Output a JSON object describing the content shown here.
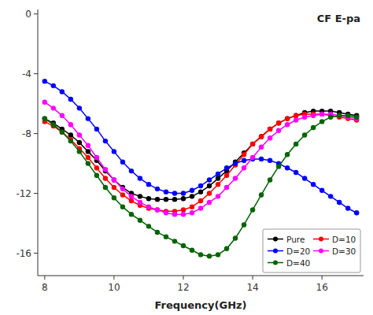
{
  "chart_data": {
    "type": "line",
    "title": "CF E-pa",
    "xlabel": "Frequency(GHz)",
    "x": [
      8.0,
      8.25,
      8.5,
      8.75,
      9.0,
      9.25,
      9.5,
      9.75,
      10.0,
      10.25,
      10.5,
      10.75,
      11.0,
      11.25,
      11.5,
      11.75,
      12.0,
      12.25,
      12.5,
      12.75,
      13.0,
      13.25,
      13.5,
      13.75,
      14.0,
      14.25,
      14.5,
      14.75,
      15.0,
      15.25,
      15.5,
      15.75,
      16.0,
      16.25,
      16.5,
      16.75,
      17.0
    ],
    "series": [
      {
        "name": "Pure",
        "color": "#000000",
        "values": [
          -7.0,
          -7.3,
          -7.7,
          -8.1,
          -8.6,
          -9.2,
          -9.8,
          -10.5,
          -11.1,
          -11.6,
          -12.0,
          -12.2,
          -12.35,
          -12.4,
          -12.4,
          -12.4,
          -12.35,
          -12.2,
          -11.9,
          -11.5,
          -11.0,
          -10.5,
          -9.9,
          -9.3,
          -8.7,
          -8.2,
          -7.7,
          -7.3,
          -7.0,
          -6.8,
          -6.6,
          -6.5,
          -6.5,
          -6.5,
          -6.6,
          -6.7,
          -6.8
        ]
      },
      {
        "name": "D=10",
        "color": "#ff0000",
        "values": [
          -7.2,
          -7.5,
          -7.9,
          -8.4,
          -9.0,
          -9.6,
          -10.3,
          -11.0,
          -11.6,
          -12.1,
          -12.5,
          -12.8,
          -13.0,
          -13.1,
          -13.2,
          -13.2,
          -13.1,
          -12.9,
          -12.5,
          -12.0,
          -11.4,
          -10.8,
          -10.1,
          -9.4,
          -8.7,
          -8.2,
          -7.7,
          -7.3,
          -7.0,
          -6.8,
          -6.7,
          -6.7,
          -6.7,
          -6.8,
          -6.9,
          -7.0,
          -7.1
        ]
      },
      {
        "name": "D=20",
        "color": "#0000ff",
        "values": [
          -4.5,
          -4.8,
          -5.2,
          -5.7,
          -6.3,
          -7.0,
          -7.7,
          -8.5,
          -9.2,
          -9.9,
          -10.5,
          -11.0,
          -11.4,
          -11.7,
          -11.9,
          -12.0,
          -12.0,
          -11.8,
          -11.5,
          -11.1,
          -10.7,
          -10.3,
          -10.0,
          -9.8,
          -9.7,
          -9.7,
          -9.8,
          -10.0,
          -10.3,
          -10.6,
          -11.0,
          -11.4,
          -11.8,
          -12.2,
          -12.6,
          -13.0,
          -13.3
        ]
      },
      {
        "name": "D=30",
        "color": "#ff00ff",
        "values": [
          -5.9,
          -6.3,
          -6.8,
          -7.4,
          -8.1,
          -8.8,
          -9.6,
          -10.4,
          -11.1,
          -11.7,
          -12.2,
          -12.6,
          -12.9,
          -13.1,
          -13.3,
          -13.4,
          -13.4,
          -13.3,
          -13.0,
          -12.6,
          -12.2,
          -11.6,
          -11.0,
          -10.3,
          -9.6,
          -8.9,
          -8.3,
          -7.8,
          -7.4,
          -7.1,
          -6.9,
          -6.8,
          -6.7,
          -6.7,
          -6.8,
          -6.9,
          -7.0
        ]
      },
      {
        "name": "D=40",
        "color": "#006400",
        "values": [
          -7.0,
          -7.4,
          -7.9,
          -8.5,
          -9.2,
          -10.0,
          -10.8,
          -11.6,
          -12.3,
          -12.9,
          -13.4,
          -13.8,
          -14.2,
          -14.6,
          -14.9,
          -15.2,
          -15.5,
          -15.8,
          -16.1,
          -16.2,
          -16.1,
          -15.7,
          -15.0,
          -14.1,
          -13.1,
          -12.1,
          -11.1,
          -10.2,
          -9.4,
          -8.7,
          -8.1,
          -7.6,
          -7.2,
          -6.9,
          -6.8,
          -6.8,
          -6.9
        ]
      }
    ],
    "xlim": [
      7.8,
      17.2
    ],
    "ylim": [
      -17.5,
      0.3
    ],
    "xticks": [
      8,
      10,
      12,
      14,
      16
    ],
    "yticks": [
      0,
      -4,
      -8,
      -12,
      -16
    ],
    "marker": "circle",
    "legend": "lower right",
    "grid": false
  }
}
